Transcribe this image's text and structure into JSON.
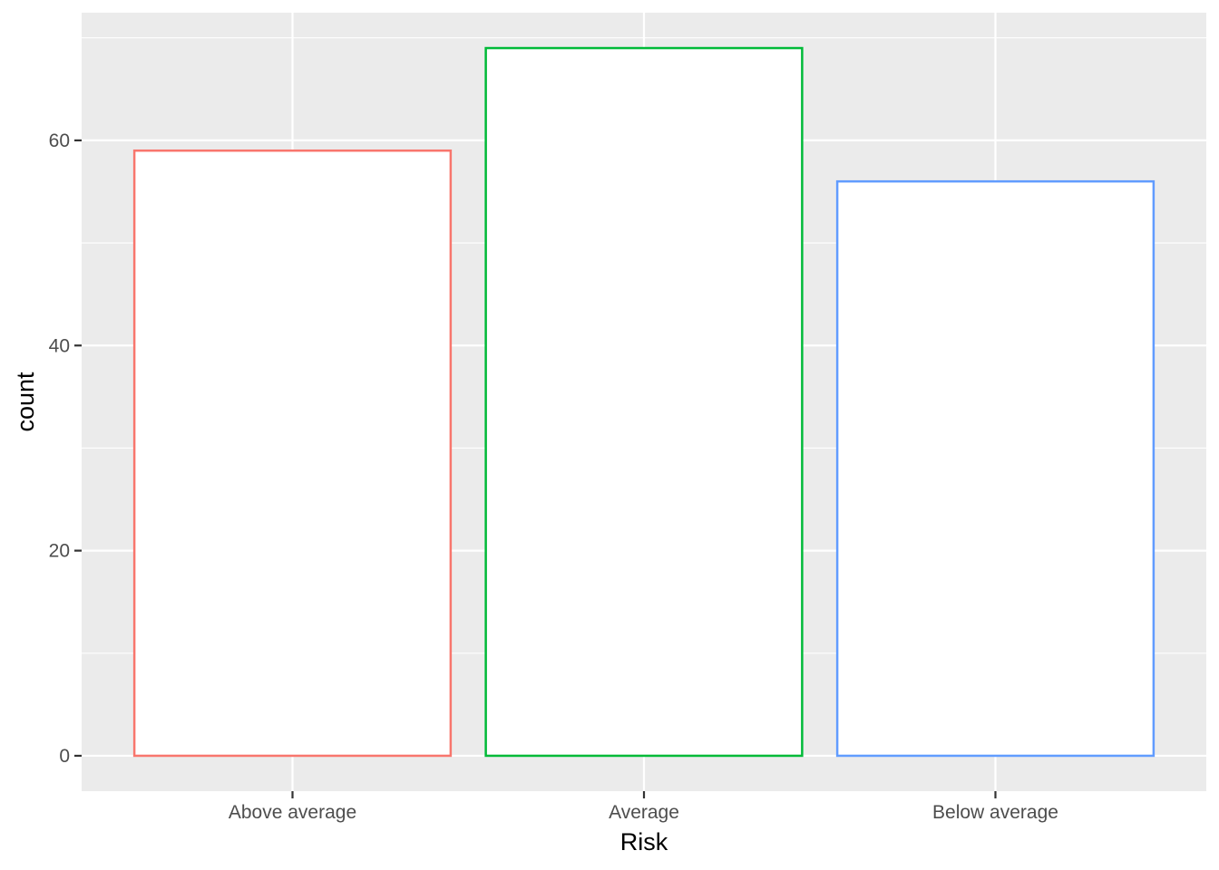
{
  "chart_data": {
    "type": "bar",
    "categories": [
      "Above average",
      "Average",
      "Below average"
    ],
    "values": [
      59,
      69,
      56
    ],
    "bar_style": "outline",
    "bar_fill": "#ffffff",
    "colors": [
      "#F8766D",
      "#00BA38",
      "#619CFF"
    ],
    "title": "",
    "xlabel": "Risk",
    "ylabel": "count",
    "ylim": [
      -3.45,
      72.45
    ],
    "yticks": [
      0,
      20,
      40,
      60
    ],
    "yticks_labels": [
      "0",
      "20",
      "40",
      "60"
    ],
    "grid": true,
    "panel_background": "#EBEBEB",
    "grid_color": "#FFFFFF"
  }
}
